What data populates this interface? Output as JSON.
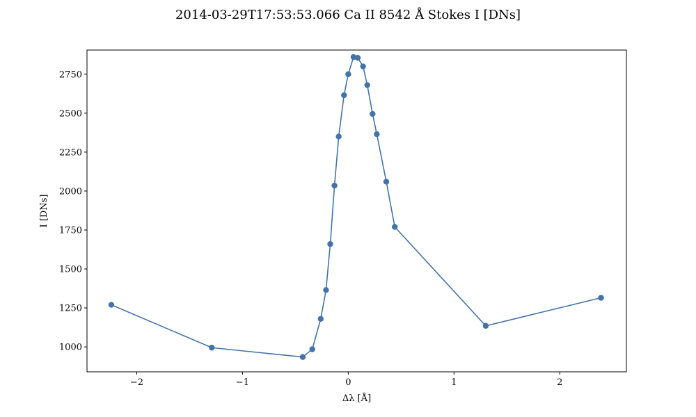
{
  "chart_data": {
    "type": "line",
    "title": "2014-03-29T17:53:53.066 Ca II 8542 Å Stokes I [DNs]",
    "xlabel": "Δλ [Å]",
    "ylabel": "I [DNs]",
    "xlim": [
      -2.47,
      2.63
    ],
    "ylim": [
      840,
      2905
    ],
    "xticks": [
      -2,
      -1,
      0,
      1,
      2
    ],
    "xtick_labels": [
      "−2",
      "−1",
      "0",
      "1",
      "2"
    ],
    "yticks": [
      1000,
      1250,
      1500,
      1750,
      2000,
      2250,
      2500,
      2750
    ],
    "ytick_labels": [
      "1000",
      "1250",
      "1500",
      "1750",
      "2000",
      "2250",
      "2500",
      "2750"
    ],
    "grid": false,
    "color": "#4373a8",
    "marker": "circle",
    "series": [
      {
        "x": [
          -2.24,
          -1.29,
          -0.43,
          -0.34,
          -0.26,
          -0.21,
          -0.17,
          -0.13,
          -0.09,
          -0.04,
          0.0,
          0.05,
          0.09,
          0.14,
          0.18,
          0.23,
          0.27,
          0.36,
          0.44,
          1.3,
          2.39
        ],
        "y": [
          1270,
          995,
          935,
          985,
          1180,
          1365,
          1660,
          2035,
          2350,
          2615,
          2750,
          2860,
          2855,
          2800,
          2680,
          2495,
          2365,
          2060,
          1770,
          1135,
          1315
        ]
      }
    ]
  }
}
